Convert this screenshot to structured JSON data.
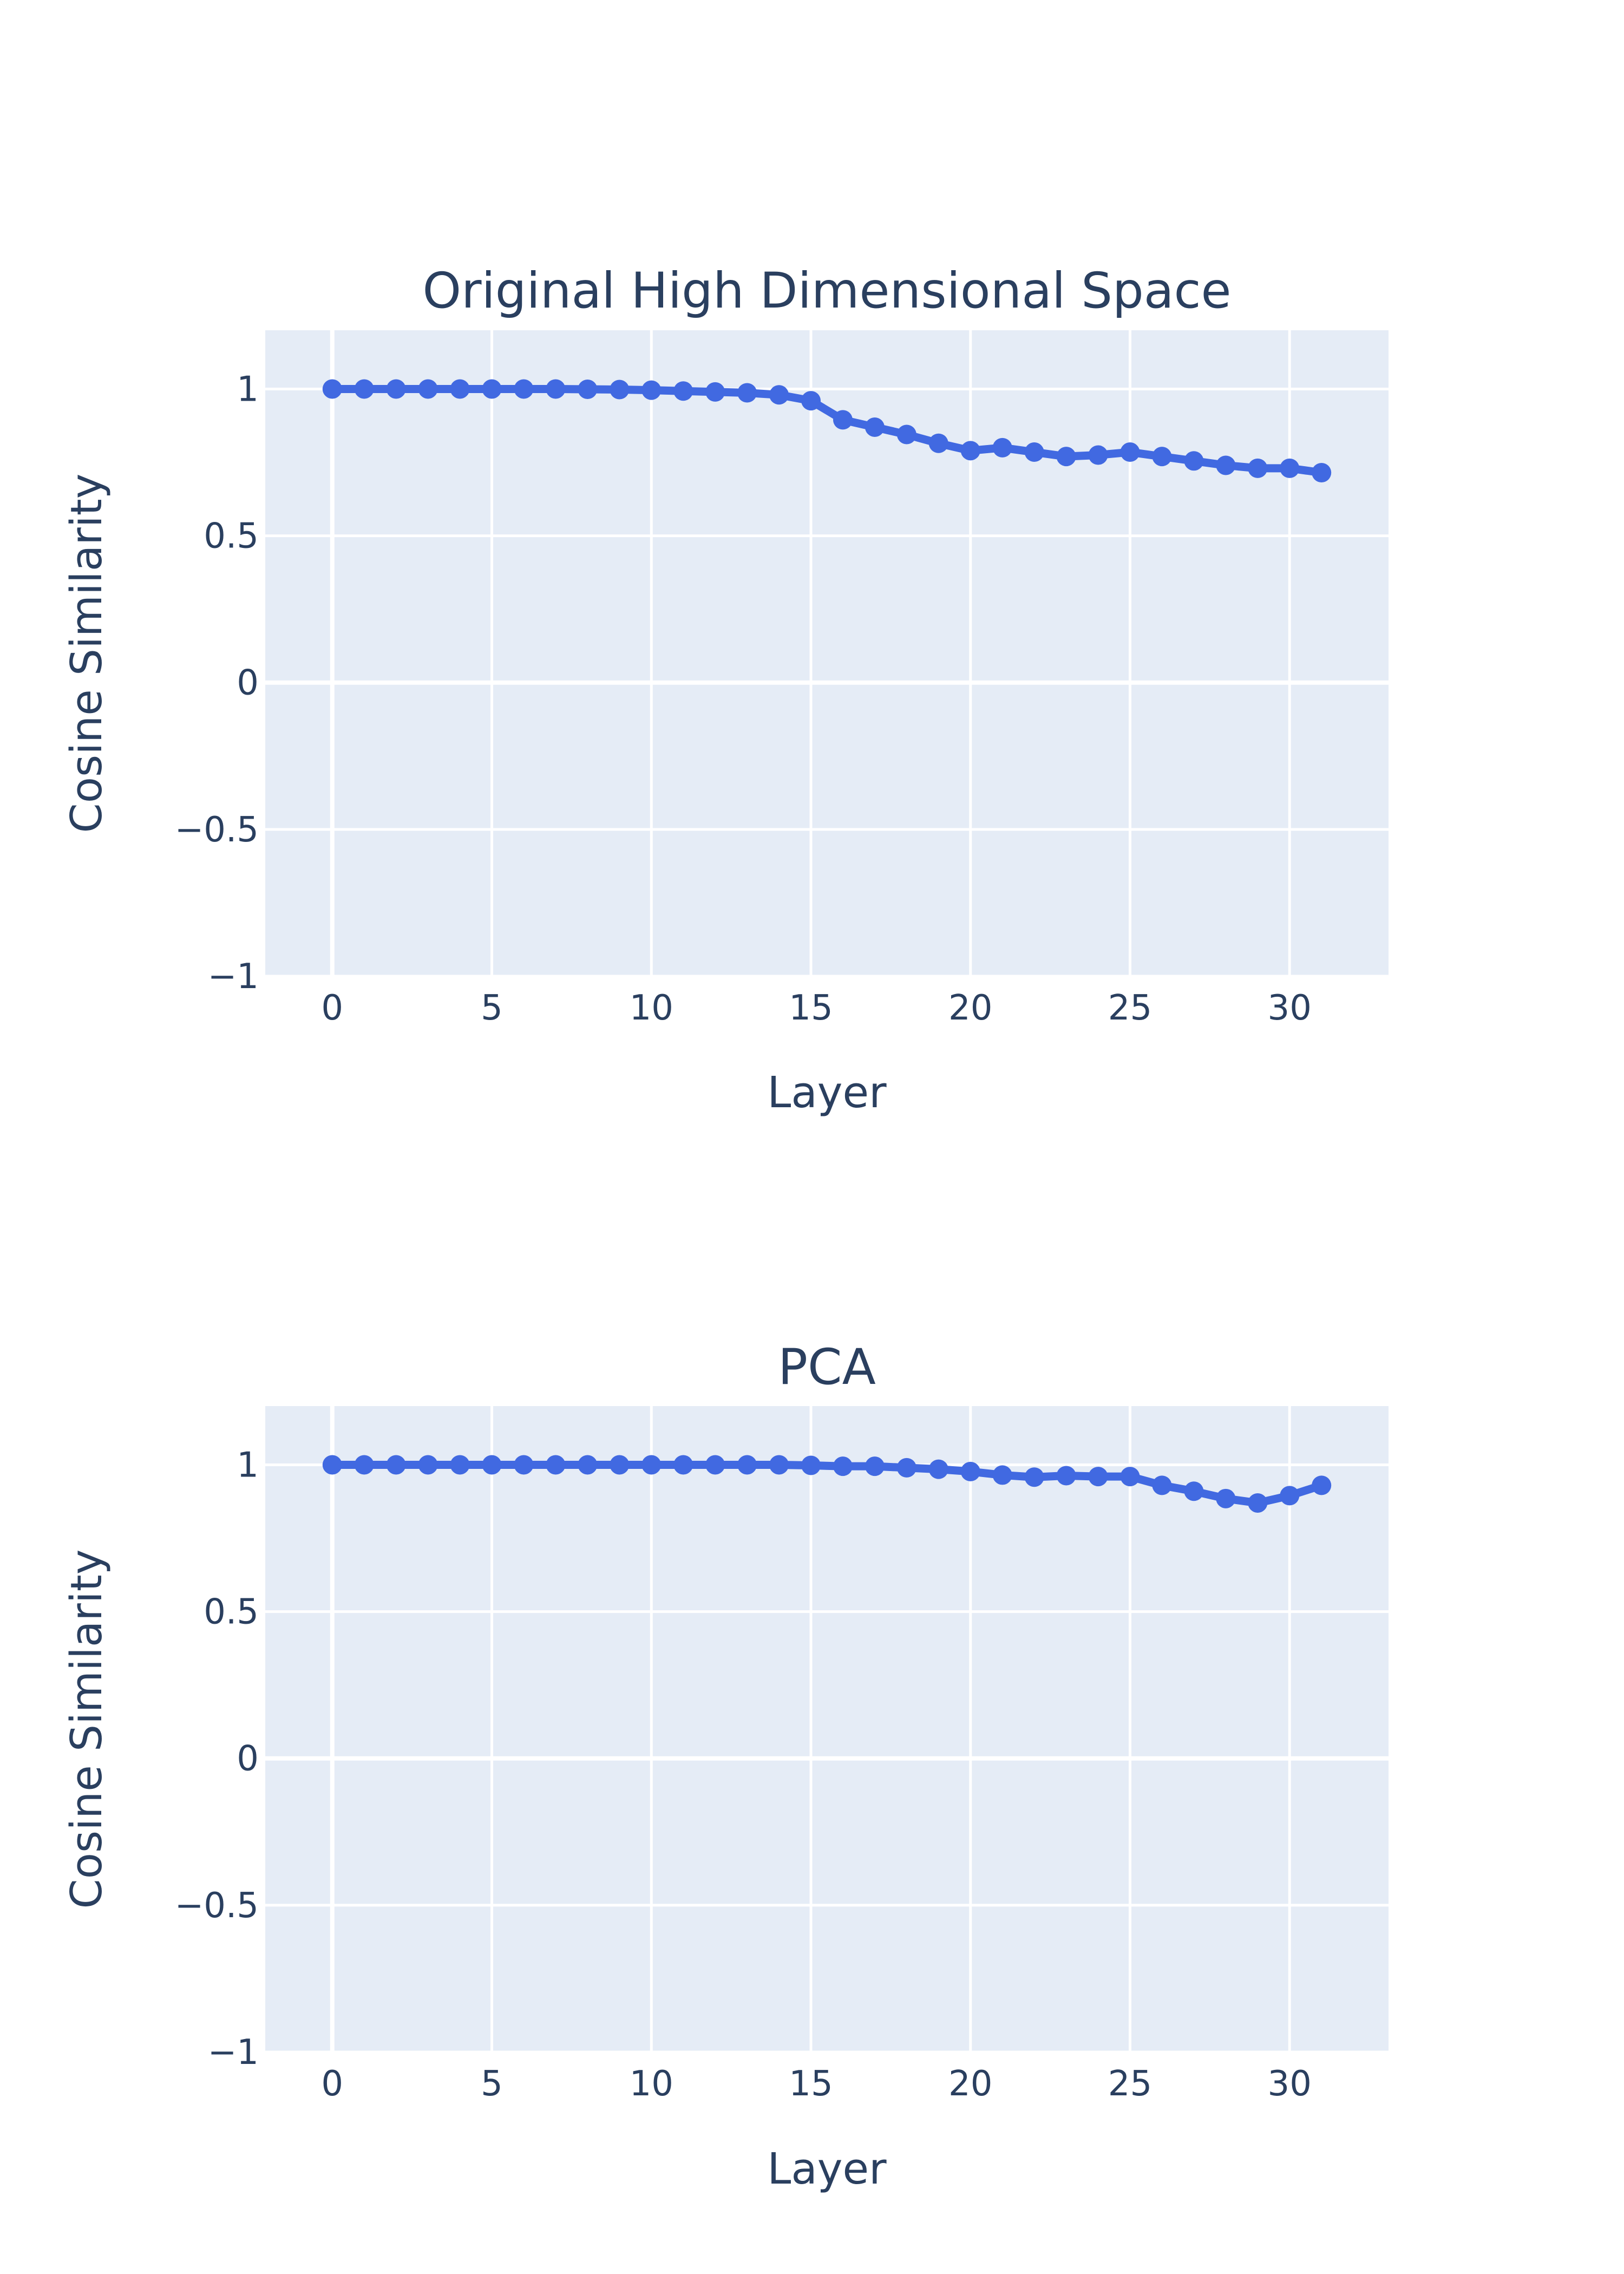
{
  "chart_data": [
    {
      "type": "line",
      "title": "Original High Dimensional Space",
      "xlabel": "Layer",
      "ylabel": "Cosine Similarity",
      "xlim": [
        -2.1,
        33.1
      ],
      "ylim": [
        -1,
        1.2
      ],
      "xticks": [
        0,
        5,
        10,
        15,
        20,
        25,
        30
      ],
      "xtick_labels": [
        "0",
        "5",
        "10",
        "15",
        "20",
        "25",
        "30"
      ],
      "yticks": [
        -1,
        -0.5,
        0,
        0.5,
        1
      ],
      "ytick_labels": [
        "−1",
        "−0.5",
        "0",
        "0.5",
        "1"
      ],
      "grid": true,
      "series": [
        {
          "x": [
            0,
            1,
            2,
            3,
            4,
            5,
            6,
            7,
            8,
            9,
            10,
            11,
            12,
            13,
            14,
            15,
            16,
            17,
            18,
            19,
            20,
            21,
            22,
            23,
            24,
            25,
            26,
            27,
            28,
            29,
            30,
            31
          ],
          "y": [
            1.0,
            1.0,
            1.0,
            1.0,
            1.0,
            1.0,
            1.0,
            1.0,
            0.999,
            0.998,
            0.996,
            0.993,
            0.99,
            0.987,
            0.98,
            0.96,
            0.895,
            0.87,
            0.845,
            0.815,
            0.79,
            0.8,
            0.785,
            0.77,
            0.775,
            0.785,
            0.77,
            0.755,
            0.74,
            0.73,
            0.73,
            0.715
          ],
          "color": "#4169e1"
        }
      ]
    },
    {
      "type": "line",
      "title": "PCA",
      "xlabel": "Layer",
      "ylabel": "Cosine Similarity",
      "xlim": [
        -2.1,
        33.1
      ],
      "ylim": [
        -1,
        1.2
      ],
      "xticks": [
        0,
        5,
        10,
        15,
        20,
        25,
        30
      ],
      "xtick_labels": [
        "0",
        "5",
        "10",
        "15",
        "20",
        "25",
        "30"
      ],
      "yticks": [
        -1,
        -0.5,
        0,
        0.5,
        1
      ],
      "ytick_labels": [
        "−1",
        "−0.5",
        "0",
        "0.5",
        "1"
      ],
      "grid": true,
      "series": [
        {
          "x": [
            0,
            1,
            2,
            3,
            4,
            5,
            6,
            7,
            8,
            9,
            10,
            11,
            12,
            13,
            14,
            15,
            16,
            17,
            18,
            19,
            20,
            21,
            22,
            23,
            24,
            25,
            26,
            27,
            28,
            29,
            30,
            31
          ],
          "y": [
            1.0,
            1.0,
            1.0,
            1.0,
            1.0,
            1.0,
            1.0,
            1.0,
            1.0,
            1.0,
            1.0,
            1.0,
            1.0,
            1.0,
            1.0,
            0.998,
            0.995,
            0.995,
            0.99,
            0.985,
            0.977,
            0.965,
            0.958,
            0.963,
            0.96,
            0.96,
            0.93,
            0.91,
            0.885,
            0.87,
            0.895,
            0.93
          ],
          "color": "#4169e1"
        }
      ]
    }
  ]
}
